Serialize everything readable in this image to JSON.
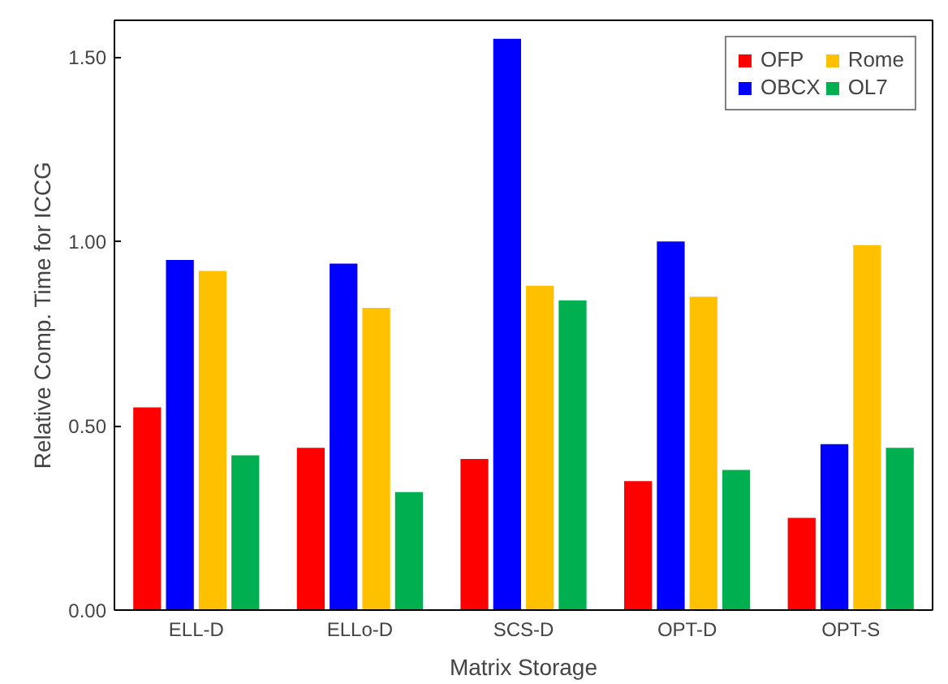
{
  "chart_data": {
    "type": "bar",
    "xlabel": "Matrix Storage",
    "ylabel": "Relative Comp. Time for ICCG",
    "categories": [
      "ELL-D",
      "ELLo-D",
      "SCS-D",
      "OPT-D",
      "OPT-S"
    ],
    "series": [
      {
        "name": "OFP",
        "color": "#ff0000",
        "values": [
          0.55,
          0.44,
          0.41,
          0.35,
          0.25
        ]
      },
      {
        "name": "OBCX",
        "color": "#0000ff",
        "values": [
          0.95,
          0.94,
          1.55,
          1.0,
          0.45
        ]
      },
      {
        "name": "Rome",
        "color": "#ffc000",
        "values": [
          0.92,
          0.82,
          0.88,
          0.85,
          0.99
        ]
      },
      {
        "name": "OL7",
        "color": "#00b050",
        "values": [
          0.42,
          0.32,
          0.84,
          0.38,
          0.44
        ]
      }
    ],
    "ylim": [
      0,
      1.6
    ],
    "yticks": [
      {
        "value": 0,
        "label": "0.00"
      },
      {
        "value": 0.5,
        "label": "0.50"
      },
      {
        "value": 1.0,
        "label": "1.00"
      },
      {
        "value": 1.5,
        "label": "1.50"
      }
    ],
    "grid": false,
    "legend": "top right"
  }
}
